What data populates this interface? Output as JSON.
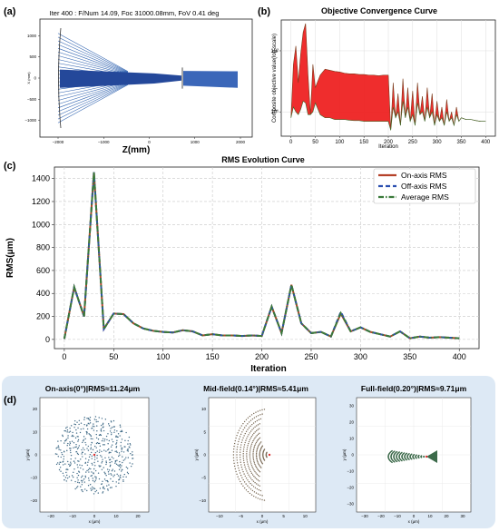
{
  "panel_a": {
    "label": "(a)",
    "title": "Iter 400 : F/Num 14.09, Foc 31000.08mm, FoV 0.41 deg",
    "xlabel": "Z(mm)",
    "ylabel": "X (mm)",
    "xticks": [
      "−2000",
      "−1000",
      "0",
      "1000",
      "2000"
    ],
    "yticks": [
      "1000",
      "500",
      "0",
      "−500",
      "−1000"
    ]
  },
  "panel_b": {
    "label": "(b)",
    "title": "Objective Convergence Curve",
    "xlabel": "Iteration",
    "ylabel": "Composite objective value(log-scale)",
    "xticks": [
      "0",
      "50",
      "100",
      "150",
      "200",
      "250",
      "300",
      "350",
      "400"
    ],
    "yticks": [
      "10²",
      "10¹"
    ]
  },
  "panel_c": {
    "label": "(c)",
    "title": "RMS Evolution Curve",
    "xlabel": "Iteration",
    "ylabel": "RMS(μm)",
    "legend": [
      "On-axis RMS",
      "Off-axis RMS",
      "Average RMS"
    ]
  },
  "panel_d": {
    "label": "(d)",
    "subplots": [
      {
        "title": "On-axis(0°)|RMS≈11.24μm",
        "xlabel": "x (μm)",
        "ylabel": "y (μm)",
        "xticks": [
          "−20",
          "−10",
          "0",
          "10",
          "20"
        ],
        "yticks": [
          "20",
          "10",
          "0",
          "−10",
          "−20"
        ]
      },
      {
        "title": "Mid-field(0.14°)|RMS≈5.41μm",
        "xlabel": "x (μm)",
        "ylabel": "y (μm)",
        "xticks": [
          "−10",
          "−5",
          "0",
          "5",
          "10"
        ],
        "yticks": [
          "10",
          "5",
          "0",
          "−5",
          "−10"
        ]
      },
      {
        "title": "Full-field(0.20°)|RMS≈9.71μm",
        "xlabel": "x (μm)",
        "ylabel": "y (μm)",
        "xticks": [
          "−30",
          "−20",
          "−10",
          "0",
          "10",
          "20",
          "30"
        ],
        "yticks": [
          "30",
          "20",
          "10",
          "0",
          "−10",
          "−20",
          "−30"
        ]
      }
    ]
  },
  "colors": {
    "on_axis": "#b5422a",
    "off_axis": "#2b4fb0",
    "average": "#3a7a3a",
    "ray_blue": "#2b5fae",
    "convergence_red": "#ee2222",
    "panel_d_bg": "#dde9f5",
    "spot_on": "#3f6a86",
    "spot_mid": "#7a6a56",
    "spot_full": "#3c6a4a"
  },
  "chart_data": [
    {
      "type": "line",
      "title": "Objective Convergence Curve",
      "xlabel": "Iteration",
      "ylabel": "Composite objective value(log-scale)",
      "yscale": "log",
      "xlim": [
        -20,
        420
      ],
      "ylim": [
        4,
        320
      ],
      "grid": true,
      "x": [
        0,
        5,
        10,
        15,
        20,
        25,
        30,
        35,
        40,
        45,
        50,
        60,
        70,
        80,
        90,
        100,
        110,
        120,
        130,
        140,
        150,
        160,
        170,
        180,
        190,
        200,
        205,
        210,
        215,
        220,
        225,
        230,
        235,
        240,
        245,
        250,
        255,
        260,
        265,
        270,
        275,
        280,
        285,
        290,
        295,
        300,
        305,
        310,
        315,
        320,
        325,
        330,
        335,
        340,
        345,
        350,
        360,
        370,
        380,
        390,
        400
      ],
      "series": [
        {
          "values": [
            8,
            60,
            120,
            30,
            90,
            200,
            280,
            40,
            9,
            60,
            25,
            40,
            50,
            48,
            46,
            45,
            43,
            42,
            42,
            41,
            41,
            40,
            40,
            39,
            40,
            40,
            5,
            30,
            8,
            20,
            6,
            35,
            8,
            25,
            7,
            22,
            6,
            30,
            9,
            18,
            7,
            25,
            8,
            20,
            6,
            15,
            7,
            12,
            6,
            16,
            7,
            10,
            6,
            12,
            7,
            8,
            7.5,
            7.5,
            7.2,
            7.0,
            7.0
          ]
        },
        {
          "values": [
            8,
            12,
            10,
            9,
            11,
            15,
            14,
            9,
            9,
            10,
            14,
            9,
            8,
            8,
            7.5,
            7.5,
            7.5,
            7.3,
            7.2,
            7.2,
            7,
            7,
            7,
            7,
            7,
            7,
            5,
            12,
            8,
            10,
            6,
            15,
            8,
            12,
            7,
            9,
            6,
            14,
            9,
            10,
            7,
            12,
            8,
            10,
            6,
            9,
            7,
            8,
            6,
            10,
            7,
            8,
            6,
            9,
            7,
            8,
            7.5,
            7.5,
            7.2,
            7.0,
            7.0
          ]
        }
      ]
    },
    {
      "type": "line",
      "title": "RMS Evolution Curve",
      "xlabel": "Iteration",
      "ylabel": "RMS(μm)",
      "xlim": [
        -10,
        420
      ],
      "ylim": [
        -80,
        1500
      ],
      "grid": true,
      "legend_position": "top-right",
      "x": [
        0,
        10,
        20,
        30,
        40,
        50,
        60,
        70,
        80,
        90,
        100,
        110,
        120,
        130,
        140,
        150,
        160,
        170,
        180,
        190,
        200,
        210,
        220,
        230,
        240,
        250,
        260,
        270,
        280,
        290,
        300,
        310,
        320,
        330,
        340,
        350,
        360,
        370,
        380,
        390,
        400
      ],
      "series": [
        {
          "name": "On-axis RMS",
          "values": [
            5,
            455,
            200,
            1455,
            90,
            225,
            220,
            140,
            95,
            75,
            65,
            60,
            80,
            70,
            35,
            45,
            35,
            35,
            30,
            35,
            30,
            285,
            55,
            475,
            140,
            55,
            65,
            25,
            225,
            70,
            105,
            65,
            45,
            25,
            70,
            10,
            25,
            15,
            20,
            15,
            10
          ]
        },
        {
          "name": "Off-axis RMS",
          "values": [
            5,
            455,
            200,
            1455,
            90,
            225,
            220,
            140,
            95,
            75,
            65,
            60,
            80,
            70,
            35,
            45,
            35,
            35,
            30,
            35,
            30,
            285,
            55,
            475,
            140,
            55,
            65,
            25,
            240,
            70,
            105,
            65,
            45,
            25,
            70,
            10,
            25,
            15,
            20,
            15,
            10
          ]
        },
        {
          "name": "Average RMS",
          "values": [
            5,
            455,
            200,
            1455,
            90,
            225,
            220,
            140,
            95,
            75,
            65,
            60,
            80,
            70,
            35,
            45,
            35,
            35,
            30,
            35,
            30,
            285,
            55,
            475,
            140,
            55,
            65,
            25,
            230,
            70,
            105,
            65,
            45,
            25,
            70,
            10,
            25,
            15,
            20,
            15,
            10
          ]
        }
      ],
      "yticks": [
        0,
        200,
        400,
        600,
        800,
        1000,
        1200,
        1400
      ],
      "xticks": [
        0,
        50,
        100,
        150,
        200,
        250,
        300,
        350,
        400
      ]
    }
  ]
}
